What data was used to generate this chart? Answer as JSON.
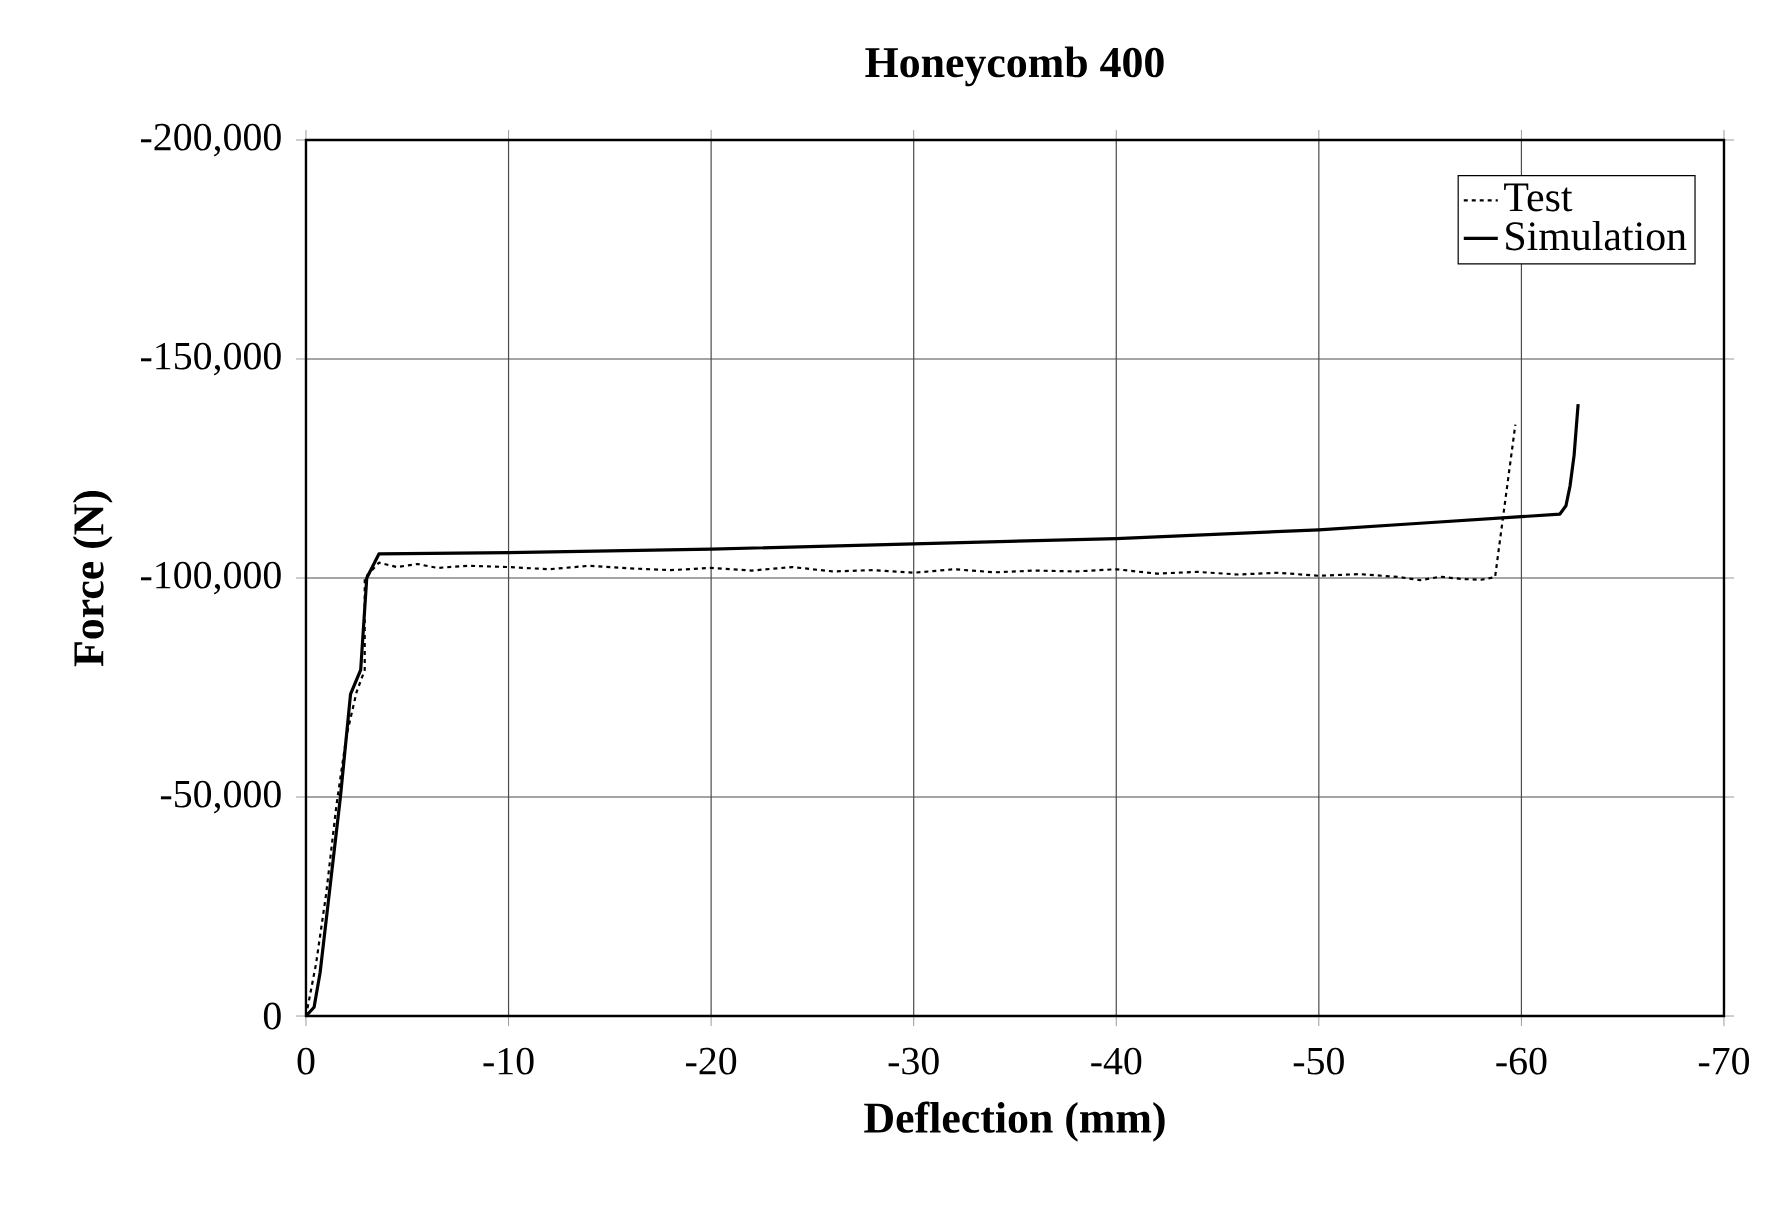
{
  "chart_data": {
    "type": "line",
    "title": "Honeycomb  400",
    "xlabel": "Deflection (mm)",
    "ylabel": "Force (N)",
    "xlim": [
      0,
      -70
    ],
    "xticks": [
      0,
      -10,
      -20,
      -30,
      -40,
      -50,
      -60,
      -70
    ],
    "ylim": [
      0,
      -200000
    ],
    "yticks": [
      {
        "value": 0,
        "label": "0"
      },
      {
        "value": -50000,
        "label": "-50,000"
      },
      {
        "value": -100000,
        "label": "-100,000"
      },
      {
        "value": -150000,
        "label": "-150,000"
      },
      {
        "value": -200000,
        "label": "-200,000"
      }
    ],
    "grid": true,
    "legend": "top right",
    "marker": "none",
    "series": [
      {
        "name": "Test",
        "color": "#000000",
        "line_style": "dotted",
        "x": [
          0,
          -0.5,
          -1,
          -1.5,
          -2,
          -2.5,
          -2.9,
          -2.9,
          -3.2,
          -3.6,
          -4.5,
          -5.5,
          -6.5,
          -8,
          -10,
          -12,
          -14,
          -16,
          -18,
          -20,
          -22,
          -24,
          -26,
          -28,
          -30,
          -32,
          -34,
          -36,
          -38,
          -40,
          -42,
          -44,
          -46,
          -48,
          -50,
          -52,
          -54,
          -55,
          -56,
          -57,
          -58,
          -58.7,
          -59.7
        ],
        "values": [
          0,
          -12000,
          -28000,
          -48000,
          -64000,
          -74000,
          -79000,
          -100000,
          -101500,
          -103500,
          -102500,
          -103200,
          -102300,
          -102800,
          -102500,
          -102000,
          -102800,
          -102200,
          -101800,
          -102300,
          -101700,
          -102500,
          -101500,
          -101800,
          -101200,
          -102000,
          -101300,
          -101700,
          -101500,
          -102000,
          -101000,
          -101400,
          -100800,
          -101200,
          -100500,
          -100900,
          -100200,
          -99500,
          -100300,
          -99800,
          -99600,
          -100200,
          -135000
        ]
      },
      {
        "name": "Simulation",
        "color": "#000000",
        "line_style": "solid",
        "x": [
          0,
          -0.4,
          -0.7,
          -1.2,
          -1.7,
          -2.2,
          -2.7,
          -3.0,
          -3.6,
          -10,
          -20,
          -30,
          -40,
          -50,
          -55,
          -60,
          -61.9,
          -62.2,
          -62.4,
          -62.6,
          -62.8
        ],
        "values": [
          0,
          -2000,
          -10000,
          -30000,
          -50000,
          -73500,
          -79000,
          -100000,
          -105500,
          -105800,
          -106600,
          -107800,
          -109000,
          -111000,
          -112500,
          -114000,
          -114600,
          -116500,
          -121000,
          -128000,
          -139700
        ]
      }
    ]
  }
}
